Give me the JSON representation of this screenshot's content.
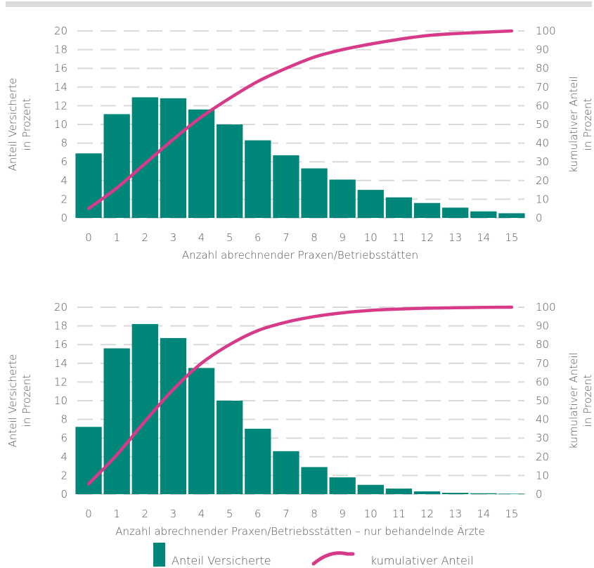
{
  "chart_data": [
    {
      "type": "bar",
      "categories": [
        "0",
        "1",
        "2",
        "3",
        "4",
        "5",
        "6",
        "7",
        "8",
        "9",
        "10",
        "11",
        "12",
        "13",
        "14",
        "15"
      ],
      "series": [
        {
          "name": "Anteil Versicherte",
          "type": "bar",
          "axis": "left",
          "values": [
            6.9,
            11.1,
            12.9,
            12.8,
            11.6,
            10.0,
            8.3,
            6.7,
            5.3,
            4.1,
            3.0,
            2.2,
            1.6,
            1.1,
            0.7,
            0.5
          ]
        },
        {
          "name": "kumulativer Anteil",
          "type": "line",
          "axis": "right",
          "values": [
            5,
            16,
            29,
            42,
            54,
            64,
            73,
            80,
            86,
            90,
            93,
            95.5,
            97.5,
            98.6,
            99.3,
            100
          ]
        }
      ],
      "xlabel": "Anzahl abrechnender Praxen/Betriebsstätten",
      "ylabel": "Anteil Versicherte in Prozent",
      "ylabel_lines": [
        "Anteil Versicherte",
        "in Prozent"
      ],
      "y2label": "kumulativer Anteil in Prozent",
      "y2label_lines": [
        "kumulativer Anteil",
        "in Prozent"
      ],
      "ylim": [
        0,
        20
      ],
      "yticks": [
        0,
        2,
        4,
        6,
        8,
        10,
        12,
        14,
        16,
        18,
        20
      ],
      "y2lim": [
        0,
        100
      ],
      "y2ticks": [
        0,
        10,
        20,
        30,
        40,
        50,
        60,
        70,
        80,
        90,
        100
      ],
      "grid": "dashed horizontal"
    },
    {
      "type": "bar",
      "categories": [
        "0",
        "1",
        "2",
        "3",
        "4",
        "5",
        "6",
        "7",
        "8",
        "9",
        "10",
        "11",
        "12",
        "13",
        "14",
        "15"
      ],
      "series": [
        {
          "name": "Anteil Versicherte",
          "type": "bar",
          "axis": "left",
          "values": [
            7.2,
            15.6,
            18.2,
            16.7,
            13.5,
            10.0,
            7.0,
            4.6,
            2.9,
            1.8,
            1.0,
            0.6,
            0.3,
            0.15,
            0.1,
            0.05
          ]
        },
        {
          "name": "kumulativer Anteil",
          "type": "line",
          "axis": "right",
          "values": [
            5.5,
            21,
            39,
            56,
            70,
            80,
            87.5,
            92,
            95,
            97,
            98.3,
            99,
            99.5,
            99.7,
            99.9,
            100
          ]
        }
      ],
      "xlabel": "Anzahl abrechnender Praxen/Betriebsstätten – nur behandelnde Ärzte",
      "ylabel": "Anteil Versicherte in Prozent",
      "ylabel_lines": [
        "Anteil Versicherte",
        "in Prozent"
      ],
      "y2label": "kumulativer Anteil in Prozent",
      "y2label_lines": [
        "kumulativer Anteil",
        "in Prozent"
      ],
      "ylim": [
        0,
        20
      ],
      "yticks": [
        0,
        2,
        4,
        6,
        8,
        10,
        12,
        14,
        16,
        18,
        20
      ],
      "y2lim": [
        0,
        100
      ],
      "y2ticks": [
        0,
        10,
        20,
        30,
        40,
        50,
        60,
        70,
        80,
        90,
        100
      ],
      "grid": "dashed horizontal"
    }
  ],
  "legend": {
    "placement": "bottom-center",
    "bar_label": "Anteil Versicherte",
    "line_label": "kumulativer Anteil"
  },
  "colors": {
    "bar": "#00877a",
    "line": "#d63a88",
    "grid": "#d9d9d9",
    "text": "#555555",
    "top_rule": "#dcdcdc"
  }
}
